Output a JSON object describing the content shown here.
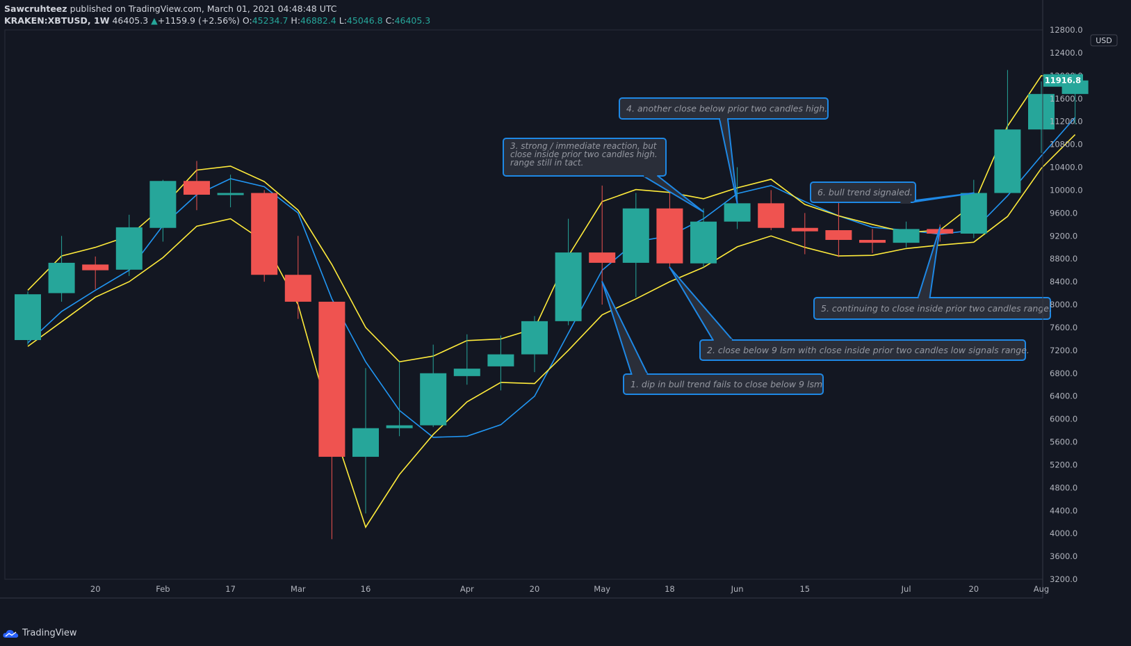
{
  "header": {
    "author": "Sawcruhteez",
    "published_text": "published on TradingView.com, March 01, 2021 04:48:48 UTC",
    "symbol": "KRAKEN:XBTUSD, 1W",
    "last": "46405.3",
    "change_arrow": "▲",
    "change": "+1159.9 (+2.56%)",
    "o_label": "O:",
    "o": "45234.7",
    "h_label": "H:",
    "h": "46882.4",
    "l_label": "L:",
    "l": "45046.8",
    "c_label": "C:",
    "c": "46405.3"
  },
  "footer": {
    "brand": "TradingView"
  },
  "colors": {
    "background": "#131722",
    "up": "#26a69a",
    "down": "#ef5350",
    "lsm": "#2196f3",
    "band": "#ffeb3b",
    "note_border": "#1e88e5",
    "note_bg": "#2a2e39"
  },
  "chart_data": {
    "type": "candlestick",
    "currency_label": "USD",
    "last_price_label": "11916.8",
    "ylim": [
      3200,
      12800
    ],
    "y_ticks": [
      3200,
      3600,
      4000,
      4400,
      4800,
      5200,
      5600,
      6000,
      6400,
      6800,
      7200,
      7600,
      8000,
      8400,
      8800,
      9200,
      9600,
      10000,
      10400,
      10800,
      11200,
      11600,
      12000,
      12400,
      12800
    ],
    "x_ticks": [
      {
        "i": 2,
        "label": "20"
      },
      {
        "i": 4,
        "label": "Feb"
      },
      {
        "i": 6,
        "label": "17"
      },
      {
        "i": 8,
        "label": "Mar"
      },
      {
        "i": 10,
        "label": "16"
      },
      {
        "i": 13,
        "label": "Apr"
      },
      {
        "i": 15,
        "label": "20"
      },
      {
        "i": 17,
        "label": "May"
      },
      {
        "i": 19,
        "label": "18"
      },
      {
        "i": 21,
        "label": "Jun"
      },
      {
        "i": 23,
        "label": "15"
      },
      {
        "i": 26,
        "label": "Jul"
      },
      {
        "i": 28,
        "label": "20"
      },
      {
        "i": 30,
        "label": "Aug"
      }
    ],
    "candles": [
      {
        "o": 7380,
        "h": 8230,
        "l": 7300,
        "c": 8180
      },
      {
        "o": 8200,
        "h": 9200,
        "l": 8050,
        "c": 8730
      },
      {
        "o": 8700,
        "h": 8840,
        "l": 8270,
        "c": 8600
      },
      {
        "o": 8610,
        "h": 9570,
        "l": 8500,
        "c": 9350
      },
      {
        "o": 9340,
        "h": 10180,
        "l": 9100,
        "c": 10160
      },
      {
        "o": 10160,
        "h": 10510,
        "l": 9650,
        "c": 9920
      },
      {
        "o": 9920,
        "h": 10270,
        "l": 9700,
        "c": 9950
      },
      {
        "o": 9950,
        "h": 10000,
        "l": 8400,
        "c": 8520
      },
      {
        "o": 8520,
        "h": 9200,
        "l": 7750,
        "c": 8050
      },
      {
        "o": 8050,
        "h": 8050,
        "l": 3900,
        "c": 5340
      },
      {
        "o": 5340,
        "h": 6890,
        "l": 4350,
        "c": 5840
      },
      {
        "o": 5840,
        "h": 7000,
        "l": 5700,
        "c": 5890
      },
      {
        "o": 5890,
        "h": 7300,
        "l": 5860,
        "c": 6800
      },
      {
        "o": 6750,
        "h": 7480,
        "l": 6600,
        "c": 6880
      },
      {
        "o": 6920,
        "h": 7460,
        "l": 6500,
        "c": 7130
      },
      {
        "o": 7130,
        "h": 7800,
        "l": 6820,
        "c": 7710
      },
      {
        "o": 7710,
        "h": 9500,
        "l": 7640,
        "c": 8910
      },
      {
        "o": 8910,
        "h": 10080,
        "l": 8000,
        "c": 8730
      },
      {
        "o": 8730,
        "h": 9950,
        "l": 8130,
        "c": 9680
      },
      {
        "o": 9680,
        "h": 9950,
        "l": 8650,
        "c": 8720
      },
      {
        "o": 8720,
        "h": 9680,
        "l": 8650,
        "c": 9450
      },
      {
        "o": 9450,
        "h": 10400,
        "l": 9320,
        "c": 9770
      },
      {
        "o": 9770,
        "h": 10000,
        "l": 9300,
        "c": 9340
      },
      {
        "o": 9340,
        "h": 9600,
        "l": 8880,
        "c": 9280
      },
      {
        "o": 9300,
        "h": 9800,
        "l": 8830,
        "c": 9130
      },
      {
        "o": 9130,
        "h": 9320,
        "l": 8900,
        "c": 9080
      },
      {
        "o": 9080,
        "h": 9450,
        "l": 9000,
        "c": 9320
      },
      {
        "o": 9320,
        "h": 9400,
        "l": 9100,
        "c": 9240
      },
      {
        "o": 9240,
        "h": 10180,
        "l": 9160,
        "c": 9950
      },
      {
        "o": 9950,
        "h": 12100,
        "l": 9950,
        "c": 11060
      },
      {
        "o": 11060,
        "h": 11900,
        "l": 10650,
        "c": 11680
      },
      {
        "o": 11680,
        "h": 12050,
        "l": 11150,
        "c": 11916.8
      }
    ],
    "series": [
      {
        "style": "blue",
        "values": [
          7330,
          7880,
          8250,
          8600,
          9380,
          9920,
          10200,
          10060,
          9600,
          8100,
          7000,
          6150,
          5680,
          5700,
          5900,
          6400,
          7500,
          8600,
          9100,
          9200,
          9500,
          9940,
          10080,
          9800,
          9550,
          9350,
          9300,
          9230,
          9300,
          9900,
          10600,
          11270
        ]
      },
      {
        "style": "yellow",
        "values": [
          8250,
          8850,
          9000,
          9200,
          9710,
          10350,
          10420,
          10150,
          9650,
          8700,
          7600,
          7000,
          7100,
          7370,
          7400,
          7580,
          8850,
          9800,
          10010,
          9960,
          9850,
          10040,
          10190,
          9750,
          9550,
          9400,
          9260,
          9300,
          9760,
          11120,
          12000,
          11990
        ]
      },
      {
        "style": "yellow",
        "values": [
          7270,
          7700,
          8130,
          8400,
          8820,
          9370,
          9500,
          9100,
          8000,
          5900,
          4110,
          5030,
          5730,
          6300,
          6640,
          6620,
          7200,
          7820,
          8100,
          8400,
          8650,
          9010,
          9200,
          9000,
          8850,
          8860,
          8980,
          9040,
          9090,
          9540,
          10380,
          10970
        ]
      }
    ],
    "annotations": [
      {
        "text": "1. dip in bull trend fails to close below 9 lsm",
        "anchor_i": 17,
        "anchor_v": 8400
      },
      {
        "text": "2. close below 9 lsm with close inside prior two candles low signals range.",
        "anchor_i": 19,
        "anchor_v": 8650
      },
      {
        "text": "3. strong / immediate reaction, but close inside prior two candles high. range still in tact.",
        "anchor_i": 20,
        "anchor_v": 9620
      },
      {
        "text": "4. another close below prior two candles high.",
        "anchor_i": 21,
        "anchor_v": 9770
      },
      {
        "text": "5. continuing to close inside prior two candles range.",
        "anchor_i": 27,
        "anchor_v": 9350
      },
      {
        "text": "6. bull trend signaled.",
        "anchor_i": 28,
        "anchor_v": 9950
      }
    ]
  }
}
